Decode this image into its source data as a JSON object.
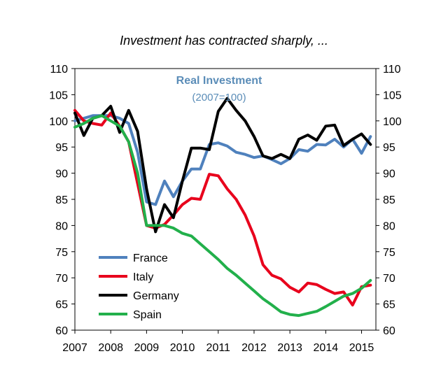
{
  "chart_data": {
    "type": "line",
    "title": "Investment  has contracted  sharply, ...",
    "annotation": {
      "title": "Real Investment",
      "subtitle": "(2007=100)",
      "color": "#5b8db8"
    },
    "ylim": [
      60,
      110
    ],
    "y_ticks": [
      60,
      65,
      70,
      75,
      80,
      85,
      90,
      95,
      100,
      105,
      110
    ],
    "x_ticks": [
      "2007",
      "2008",
      "2009",
      "2010",
      "2011",
      "2012",
      "2013",
      "2014",
      "2015"
    ],
    "xlim": [
      2007,
      2015.4
    ],
    "legend_position": "bottom-left",
    "grid": false,
    "series": [
      {
        "name": "France",
        "color": "#4f81bd",
        "x": [
          2007.0,
          2007.25,
          2007.5,
          2007.75,
          2008.0,
          2008.25,
          2008.5,
          2008.75,
          2009.0,
          2009.25,
          2009.5,
          2009.75,
          2010.0,
          2010.25,
          2010.5,
          2010.75,
          2011.0,
          2011.25,
          2011.5,
          2011.75,
          2012.0,
          2012.25,
          2012.5,
          2012.75,
          2013.0,
          2013.25,
          2013.5,
          2013.75,
          2014.0,
          2014.25,
          2014.5,
          2014.75,
          2015.0,
          2015.25
        ],
        "y": [
          100,
          100.5,
          101,
          101,
          101,
          100.5,
          99.5,
          94,
          84.5,
          84,
          88.5,
          85.5,
          88.5,
          90.8,
          90.8,
          95.5,
          95.8,
          95.2,
          94,
          93.6,
          93,
          93.3,
          92.6,
          91.8,
          92.8,
          94.5,
          94.2,
          95.5,
          95.4,
          96.5,
          95,
          96.5,
          93.8,
          97
        ]
      },
      {
        "name": "Italy",
        "color": "#e8001c",
        "x": [
          2007.0,
          2007.25,
          2007.5,
          2007.75,
          2008.0,
          2008.25,
          2008.5,
          2008.75,
          2009.0,
          2009.25,
          2009.5,
          2009.75,
          2010.0,
          2010.25,
          2010.5,
          2010.75,
          2011.0,
          2011.25,
          2011.5,
          2011.75,
          2012.0,
          2012.25,
          2012.5,
          2012.75,
          2013.0,
          2013.25,
          2013.5,
          2013.75,
          2014.0,
          2014.25,
          2014.5,
          2014.75,
          2015.0,
          2015.25
        ],
        "y": [
          102,
          100,
          99.5,
          99.2,
          101.5,
          99,
          96,
          88,
          80,
          79.5,
          80.2,
          82,
          84,
          85.2,
          85,
          89.8,
          89.5,
          87,
          85,
          82,
          78,
          72.5,
          70.5,
          69.8,
          68.2,
          67.3,
          69,
          68.7,
          67.8,
          67,
          67.3,
          64.8,
          68.3,
          68.6
        ]
      },
      {
        "name": "Germany",
        "color": "#000000",
        "x": [
          2007.0,
          2007.25,
          2007.5,
          2007.75,
          2008.0,
          2008.25,
          2008.5,
          2008.75,
          2009.0,
          2009.25,
          2009.5,
          2009.75,
          2010.0,
          2010.25,
          2010.5,
          2010.75,
          2011.0,
          2011.25,
          2011.5,
          2011.75,
          2012.0,
          2012.25,
          2012.5,
          2012.75,
          2013.0,
          2013.25,
          2013.5,
          2013.75,
          2014.0,
          2014.25,
          2014.5,
          2014.75,
          2015.0,
          2015.25
        ],
        "y": [
          101.5,
          97.2,
          100.5,
          101,
          102.8,
          97.8,
          102,
          98,
          87,
          78.8,
          84,
          81.5,
          88.5,
          94.8,
          94.8,
          94.5,
          101.8,
          104.3,
          102,
          100,
          97,
          93.3,
          92.8,
          93.6,
          92.8,
          96.5,
          97.3,
          96.3,
          99,
          99.2,
          95.3,
          96.5,
          97.5,
          95.5
        ]
      },
      {
        "name": "Spain",
        "color": "#22b04b",
        "x": [
          2007.0,
          2007.25,
          2007.5,
          2007.75,
          2008.0,
          2008.25,
          2008.5,
          2008.75,
          2009.0,
          2009.25,
          2009.5,
          2009.75,
          2010.0,
          2010.25,
          2010.5,
          2010.75,
          2011.0,
          2011.25,
          2011.5,
          2011.75,
          2012.0,
          2012.25,
          2012.5,
          2012.75,
          2013.0,
          2013.25,
          2013.5,
          2013.75,
          2014.0,
          2014.25,
          2014.5,
          2014.75,
          2015.0,
          2015.25
        ],
        "y": [
          98.8,
          99.5,
          100.5,
          101,
          100,
          99,
          96,
          90,
          80,
          80,
          80,
          79.5,
          78.5,
          78,
          76.5,
          75,
          73.5,
          71.8,
          70.5,
          69,
          67.5,
          66,
          64.8,
          63.5,
          63,
          62.8,
          63.2,
          63.6,
          64.5,
          65.5,
          66.5,
          67,
          68,
          69.5
        ]
      }
    ]
  }
}
